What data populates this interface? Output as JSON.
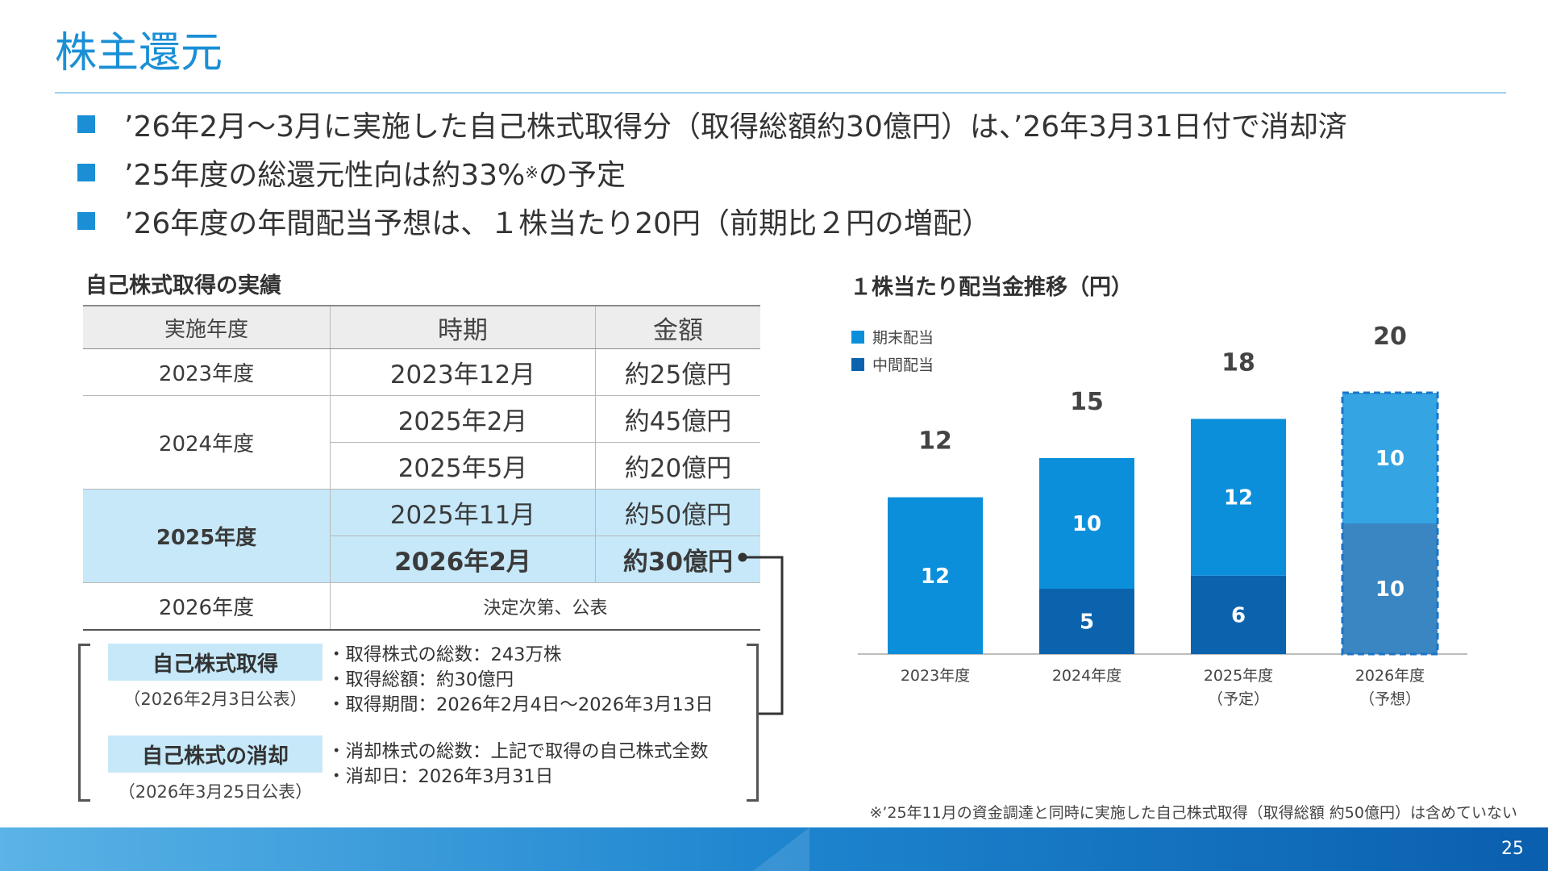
{
  "title": "株主還元",
  "bullets": [
    {
      "text": "’26年2月～3月に実施した自己株式取得分（取得総額約30億円）は、’26年3月31日付で消却済"
    },
    {
      "text": "’25年度の総還元性向は約33%",
      "sup": "※",
      "text_after": "の予定"
    },
    {
      "text": "’26年度の年間配当予想は、１株当たり20円（前期比２円の増配）"
    }
  ],
  "buyback": {
    "section_title": "自己株式取得の実績",
    "headers": [
      "実施年度",
      "時期",
      "金額"
    ],
    "rows": [
      {
        "year": "2023年度",
        "entries": [
          [
            "2023年12月",
            "約25億円"
          ]
        ]
      },
      {
        "year": "2024年度",
        "entries": [
          [
            "2025年2月",
            "約45億円"
          ],
          [
            "2025年5月",
            "約20億円"
          ]
        ]
      },
      {
        "year": "2025年度",
        "entries": [
          [
            "2025年11月",
            "約50億円"
          ],
          [
            "2026年2月",
            "約30億円"
          ]
        ]
      },
      {
        "year": "2026年度",
        "note": "決定次第、公表"
      }
    ]
  },
  "details": {
    "acquisition": {
      "label": "自己株式取得",
      "sub": "（2026年2月3日公表）",
      "items": [
        "・取得株式の総数：243万株",
        "・取得総額：約30億円",
        "・取得期間：2026年2月4日～2026年3月13日"
      ]
    },
    "cancellation": {
      "label": "自己株式の消却",
      "sub": "（2026年3月25日公表）",
      "items": [
        "・消却株式の総数：上記で取得の自己株式全数",
        "・消却日：2026年3月31日"
      ]
    }
  },
  "chart_data": {
    "type": "bar",
    "stacked": true,
    "title": "１株当たり配当金推移（円）",
    "categories": [
      "2023年度",
      "2024年度",
      "2025年度",
      "2026年度"
    ],
    "category_sublabels": [
      "",
      "",
      "（予定）",
      "（予想）"
    ],
    "series": [
      {
        "name": "中間配当",
        "values": [
          null,
          5,
          6,
          10
        ],
        "color": "#0b63ad"
      },
      {
        "name": "期末配当",
        "values": [
          12,
          10,
          12,
          10
        ],
        "color": "#0b8fdb"
      }
    ],
    "totals": [
      12,
      15,
      18,
      20
    ],
    "forecast_category": "2026年度",
    "legend_position": "top-left",
    "ylim": [
      0,
      20
    ],
    "grid": false
  },
  "colors": {
    "accent": "#1a8fd6",
    "highlight_row": "#c6e8f9",
    "final_dividend": "#0b8fdb",
    "interim_dividend": "#0b63ad",
    "forecast_final": "#35a4e3",
    "forecast_interim": "#3a86c2"
  },
  "footnote": "※’25年11月の資金調達と同時に実施した自己株式取得（取得総額 約50億円）は含めていない",
  "page_number": "25"
}
